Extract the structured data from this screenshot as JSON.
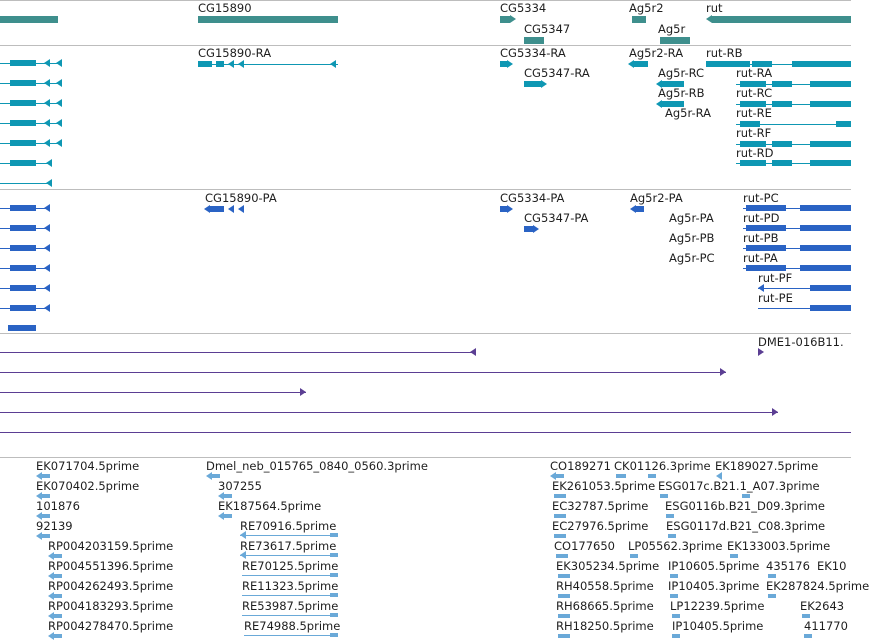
{
  "genes": [
    "CG15890",
    "CG5334",
    "CG5347",
    "Ag5r2",
    "Ag5r",
    "rut"
  ],
  "transcripts": [
    "CG15890-RA",
    "CG5334-RA",
    "CG5347-RA",
    "Ag5r2-RA",
    "rut-RB",
    "Ag5r-RC",
    "rut-RA",
    "Ag5r-RB",
    "rut-RC",
    "Ag5r-RA",
    "rut-RE",
    "rut-RF",
    "rut-RD"
  ],
  "proteins": [
    "CG15890-PA",
    "CG5334-PA",
    "CG5347-PA",
    "Ag5r2-PA",
    "rut-PC",
    "Ag5r-PA",
    "rut-PD",
    "Ag5r-PB",
    "rut-PB",
    "Ag5r-PC",
    "rut-PA",
    "rut-PF",
    "rut-PE"
  ],
  "est_labels": [
    "DME1-016B11."
  ],
  "cdna_labels": [
    "EK071704.5prime",
    "Dmel_neb_015765_0840_0560.3prime",
    "CO189271",
    "CK01126.3prime",
    "EK189027.5prime",
    "EK070402.5prime",
    "307255",
    "EK261053.5prime",
    "ESG017c.B21.1_A07.3prime",
    "101876",
    "EK187564.5prime",
    "EC32787.5prime",
    "ESG0116b.B21_D09.3prime",
    "92139",
    "RE70916.5prime",
    "EC27976.5prime",
    "ESG0117d.B21_C08.3prime",
    "RP004203159.5prime",
    "RE73617.5prime",
    "CO177650",
    "LP05562.3prime",
    "EK133003.5prime",
    "RP004551396.5prime",
    "RE70125.5prime",
    "EK305234.5prime",
    "IP10605.5prime",
    "435176",
    "EK10",
    "RP004262493.5prime",
    "RE11323.5prime",
    "RH40558.5prime",
    "IP10405.3prime",
    "EK287824.5prime",
    "RP004183293.5prime",
    "RE53987.5prime",
    "RH68665.5prime",
    "LP12239.5prime",
    "EK2643",
    "RP004278470.5prime",
    "RE74988.5prime",
    "RH18250.5prime",
    "IP10405.5prime",
    "411770"
  ],
  "colors": {
    "gene": "#3e8f8d",
    "mrna": "#0e97b3",
    "protein": "#2a63c4",
    "est": "#5b3e93",
    "cdna": "#6aa9d8",
    "separator": "#bdbdbd"
  }
}
